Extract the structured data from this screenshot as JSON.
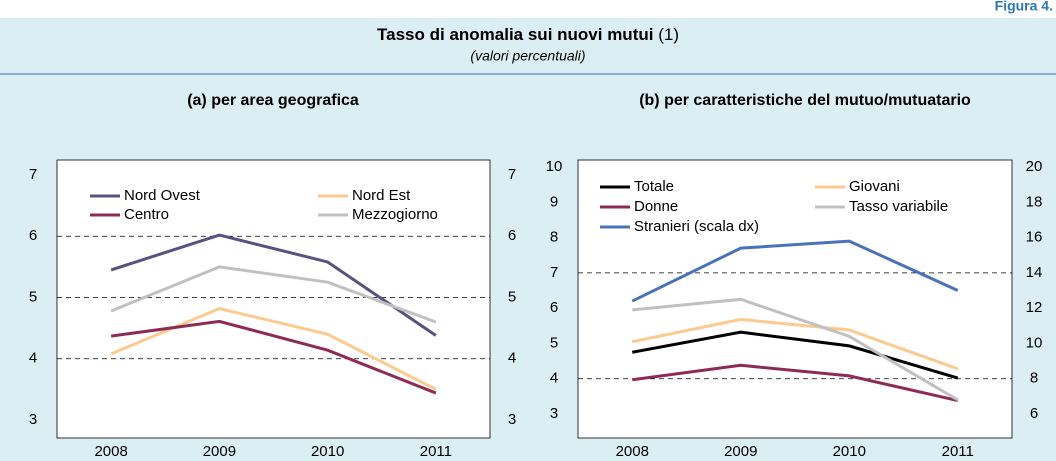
{
  "figure_label": "Figura 4.",
  "title": "Tasso di anomalia sui nuovi mutui",
  "title_note": "(1)",
  "subtitle": "(valori percentuali)",
  "chart_data": [
    {
      "type": "line",
      "title": "(a) per area geografica",
      "categories": [
        "2008",
        "2009",
        "2010",
        "2011"
      ],
      "ylim": [
        3,
        7
      ],
      "yticks": [
        3,
        4,
        5,
        6,
        7
      ],
      "y2lim": [
        3,
        7
      ],
      "y2ticks": [
        3,
        4,
        5,
        6,
        7
      ],
      "gridlines": [
        4,
        5,
        6
      ],
      "series": [
        {
          "name": "Nord Ovest",
          "color": "#5b5080",
          "values": [
            5.45,
            6.02,
            5.58,
            4.38
          ]
        },
        {
          "name": "Nord Est",
          "color": "#fcc98f",
          "values": [
            4.08,
            4.82,
            4.4,
            3.5
          ]
        },
        {
          "name": "Centro",
          "color": "#8e2b55",
          "values": [
            4.37,
            4.61,
            4.14,
            3.44
          ]
        },
        {
          "name": "Mezzogiorno",
          "color": "#c0c0c0",
          "values": [
            4.78,
            5.5,
            5.25,
            4.6
          ]
        }
      ]
    },
    {
      "type": "line",
      "title": "(b) per caratteristiche del mutuo/mutuatario",
      "categories": [
        "2008",
        "2009",
        "2010",
        "2011"
      ],
      "ylim": [
        3,
        10
      ],
      "yticks": [
        3,
        4,
        5,
        6,
        7,
        8,
        9,
        10
      ],
      "y2lim": [
        6,
        20
      ],
      "y2ticks": [
        6,
        8,
        10,
        12,
        14,
        16,
        18,
        20
      ],
      "gridlines": [
        4,
        7
      ],
      "series": [
        {
          "name": "Totale",
          "color": "#000000",
          "values": [
            4.75,
            5.32,
            4.93,
            4.02
          ]
        },
        {
          "name": "Giovani",
          "color": "#fcc98f",
          "values": [
            5.05,
            5.68,
            5.38,
            4.28
          ]
        },
        {
          "name": "Donne",
          "color": "#8e2b55",
          "values": [
            3.97,
            4.38,
            4.08,
            3.38
          ]
        },
        {
          "name": "Tasso variabile",
          "color": "#c0c0c0",
          "values": [
            5.95,
            6.25,
            5.2,
            3.4
          ]
        },
        {
          "name": "Stranieri (scala dx)",
          "color": "#4a72b8",
          "axis": "y2",
          "values": [
            12.4,
            15.4,
            15.8,
            13.0
          ]
        }
      ]
    }
  ]
}
